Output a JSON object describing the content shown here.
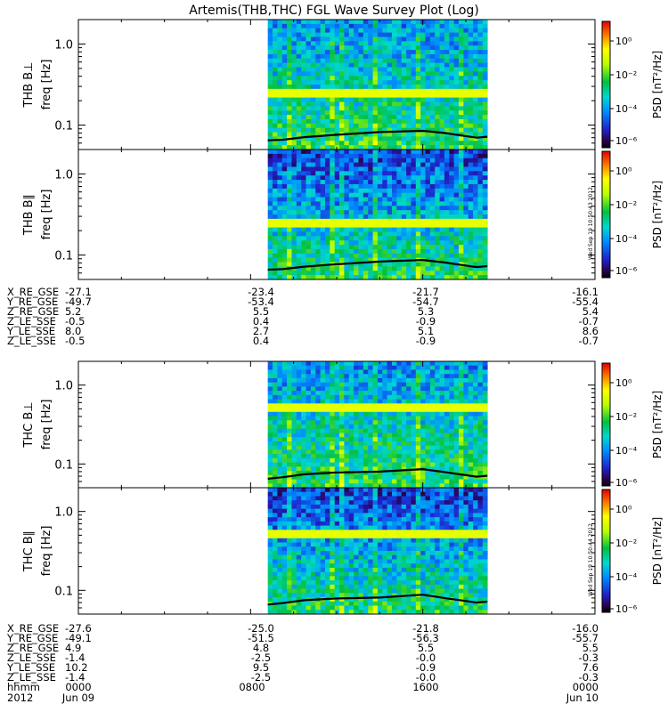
{
  "title": "Artemis(THB,THC) FGL Wave Survey Plot (Log)",
  "colorbar_label": "PSD [nT²/Hz]",
  "colorbar_ticks": [
    "10⁰",
    "10⁻²",
    "10⁻⁴",
    "10⁻⁶"
  ],
  "timestamps": [
    "Wed Sep 19 10:50:43 2012",
    "Wed Sep 19 10:50:44 2012"
  ],
  "chart_data": [
    {
      "type": "heatmap",
      "panel_label": "THB B⊥",
      "ylabel": "freq [Hz]",
      "yscale": "log",
      "ylim": [
        0.05,
        2.0
      ],
      "yticks": [
        1.0,
        0.1
      ],
      "ytick_labels": [
        "1.0",
        "0.1"
      ],
      "data_span_hours": [
        8.8,
        19.0
      ],
      "color_scale": "log",
      "color_range": [
        1e-07,
        30
      ],
      "threshold_line": {
        "hours": [
          8.8,
          9.5,
          10.5,
          12.0,
          14.0,
          16.0,
          17.0,
          18.5,
          19.0
        ],
        "freq": [
          0.065,
          0.066,
          0.071,
          0.076,
          0.082,
          0.085,
          0.08,
          0.07,
          0.072
        ]
      }
    },
    {
      "type": "heatmap",
      "panel_label": "THB B∥",
      "ylabel": "freq [Hz]",
      "yscale": "log",
      "ylim": [
        0.05,
        2.0
      ],
      "yticks": [
        1.0,
        0.1
      ],
      "ytick_labels": [
        "1.0",
        "0.1"
      ],
      "data_span_hours": [
        8.8,
        19.0
      ],
      "color_scale": "log",
      "color_range": [
        1e-07,
        30
      ],
      "threshold_line": {
        "hours": [
          8.8,
          9.5,
          10.5,
          12.0,
          14.0,
          16.0,
          17.0,
          18.5,
          19.0
        ],
        "freq": [
          0.066,
          0.067,
          0.072,
          0.077,
          0.083,
          0.087,
          0.081,
          0.071,
          0.073
        ]
      }
    },
    {
      "type": "heatmap",
      "panel_label": "THC B⊥",
      "ylabel": "freq [Hz]",
      "yscale": "log",
      "ylim": [
        0.05,
        2.0
      ],
      "yticks": [
        1.0,
        0.1
      ],
      "ytick_labels": [
        "1.0",
        "0.1"
      ],
      "data_span_hours": [
        8.8,
        19.0
      ],
      "color_scale": "log",
      "color_range": [
        1e-07,
        30
      ],
      "threshold_line": {
        "hours": [
          8.8,
          9.5,
          10.5,
          12.0,
          14.0,
          16.0,
          17.0,
          18.5,
          19.0
        ],
        "freq": [
          0.065,
          0.068,
          0.074,
          0.078,
          0.08,
          0.086,
          0.079,
          0.069,
          0.071
        ]
      }
    },
    {
      "type": "heatmap",
      "panel_label": "THC B∥",
      "ylabel": "freq [Hz]",
      "yscale": "log",
      "ylim": [
        0.05,
        2.0
      ],
      "yticks": [
        1.0,
        0.1
      ],
      "ytick_labels": [
        "1.0",
        "0.1"
      ],
      "data_span_hours": [
        8.8,
        19.0
      ],
      "color_scale": "log",
      "color_range": [
        1e-07,
        30
      ],
      "threshold_line": {
        "hours": [
          8.8,
          9.5,
          10.5,
          12.0,
          14.0,
          16.0,
          17.0,
          18.5,
          19.0
        ],
        "freq": [
          0.066,
          0.069,
          0.075,
          0.079,
          0.081,
          0.088,
          0.08,
          0.07,
          0.072
        ]
      }
    }
  ],
  "thb_ephemeris": [
    {
      "label": "X_RE_GSE",
      "values": [
        "-27.1",
        "-23.4",
        "-21.7",
        "-16.1"
      ]
    },
    {
      "label": "Y_RE_GSE",
      "values": [
        "-49.7",
        "-53.4",
        "-54.7",
        "-55.4"
      ]
    },
    {
      "label": "Z_RE_GSE",
      "values": [
        "5.2",
        "5.5",
        "5.3",
        "5.4"
      ]
    },
    {
      "label": "Z_LE_SSE",
      "values": [
        "-0.5",
        "0.4",
        "-0.9",
        "-0.7"
      ]
    },
    {
      "label": "Y_LE_SSE",
      "values": [
        "8.0",
        "2.7",
        "5.1",
        "8.6"
      ]
    },
    {
      "label": "Z_LE_SSE",
      "values": [
        "-0.5",
        "0.4",
        "-0.9",
        "-0.7"
      ]
    }
  ],
  "thc_ephemeris": [
    {
      "label": "X_RE_GSE",
      "values": [
        "-27.6",
        "-25.0",
        "-21.8",
        "-16.0"
      ]
    },
    {
      "label": "Y_RE_GSE",
      "values": [
        "-49.1",
        "-51.5",
        "-56.3",
        "-55.7"
      ]
    },
    {
      "label": "Z_RE_GSE",
      "values": [
        "4.9",
        "4.8",
        "5.5",
        "5.5"
      ]
    },
    {
      "label": "Z_LE_SSE",
      "values": [
        "-1.4",
        "-2.5",
        "-0.0",
        "-0.3"
      ]
    },
    {
      "label": "Y_LE_SSE",
      "values": [
        "10.2",
        "9.5",
        "-0.9",
        "7.6"
      ]
    },
    {
      "label": "Z_LE_SSE",
      "values": [
        "-1.4",
        "-2.5",
        "-0.0",
        "-0.3"
      ]
    }
  ],
  "time_axis": {
    "hhmm_label": "hhmm",
    "year_label": "2012",
    "hhmm": [
      "0000",
      "0800",
      "1600",
      "0000"
    ],
    "dates": [
      "Jun 09",
      "",
      "",
      "Jun 10"
    ]
  }
}
